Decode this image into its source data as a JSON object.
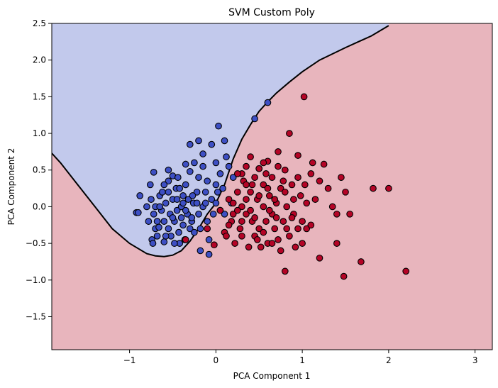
{
  "chart_data": {
    "type": "scatter",
    "title": "SVM Custom Poly",
    "xlabel": "PCA Component 1",
    "ylabel": "PCA Component 2",
    "xlim": [
      -1.9,
      3.2
    ],
    "ylim": [
      -1.95,
      2.5
    ],
    "xticks": [
      -1,
      0,
      1,
      2,
      3
    ],
    "xtick_labels": [
      "−1",
      "0",
      "1",
      "2",
      "3"
    ],
    "yticks": [
      -1.5,
      -1.0,
      -0.5,
      0.0,
      0.5,
      1.0,
      1.5,
      2.0,
      2.5
    ],
    "ytick_labels": [
      "−1.5",
      "−1.0",
      "−0.5",
      "0.0",
      "0.5",
      "1.0",
      "1.5",
      "2.0",
      "2.5"
    ],
    "grid": false,
    "legend": "none",
    "colors": {
      "region_class0": "#c2c9ec",
      "region_class1": "#e8b5bd",
      "class0": "#3d4fc4",
      "class1": "#b40426",
      "boundary": "#000000"
    },
    "decision_boundary": {
      "x": [
        -1.9,
        -1.8,
        -1.6,
        -1.4,
        -1.2,
        -1.0,
        -0.8,
        -0.7,
        -0.6,
        -0.5,
        -0.4,
        -0.3,
        -0.2,
        -0.1,
        0.0,
        0.1,
        0.2,
        0.3,
        0.4,
        0.5,
        0.6,
        0.7,
        0.85,
        1.0,
        1.2,
        1.5,
        1.8,
        2.0
      ],
      "y": [
        0.73,
        0.6,
        0.3,
        0.0,
        -0.3,
        -0.5,
        -0.64,
        -0.67,
        -0.68,
        -0.66,
        -0.6,
        -0.47,
        -0.3,
        -0.1,
        0.05,
        0.3,
        0.65,
        0.92,
        1.12,
        1.3,
        1.43,
        1.55,
        1.7,
        1.84,
        2.0,
        2.17,
        2.33,
        2.47
      ]
    },
    "series": [
      {
        "class": 0,
        "points": [
          [
            -0.92,
            -0.08
          ],
          [
            -0.9,
            -0.08
          ],
          [
            -0.88,
            0.15
          ],
          [
            -0.8,
            0.0
          ],
          [
            -0.78,
            -0.2
          ],
          [
            -0.76,
            0.3
          ],
          [
            -0.75,
            0.1
          ],
          [
            -0.74,
            -0.45
          ],
          [
            -0.73,
            -0.5
          ],
          [
            -0.72,
            0.47
          ],
          [
            -0.72,
            -0.1
          ],
          [
            -0.7,
            -0.3
          ],
          [
            -0.7,
            0.0
          ],
          [
            -0.68,
            -0.4
          ],
          [
            -0.66,
            -0.28
          ],
          [
            -0.65,
            0.15
          ],
          [
            -0.63,
            -0.05
          ],
          [
            -0.62,
            0.2
          ],
          [
            -0.6,
            -0.2
          ],
          [
            -0.6,
            -0.48
          ],
          [
            -0.58,
            0.05
          ],
          [
            -0.55,
            -0.3
          ],
          [
            -0.55,
            0.35
          ],
          [
            -0.53,
            -0.1
          ],
          [
            -0.52,
            -0.4
          ],
          [
            -0.5,
            0.1
          ],
          [
            -0.5,
            0.42
          ],
          [
            -0.48,
            -0.2
          ],
          [
            -0.46,
            0.25
          ],
          [
            -0.45,
            -0.05
          ],
          [
            -0.44,
            0.4
          ],
          [
            -0.43,
            -0.35
          ],
          [
            -0.42,
            -0.5
          ],
          [
            -0.4,
            0.0
          ],
          [
            -0.38,
            0.15
          ],
          [
            -0.38,
            -0.25
          ],
          [
            -0.36,
            -0.45
          ],
          [
            -0.35,
            0.3
          ],
          [
            -0.33,
            -0.1
          ],
          [
            -0.32,
            0.1
          ],
          [
            -0.3,
            -0.3
          ],
          [
            -0.3,
            0.48
          ],
          [
            -0.28,
            -0.2
          ],
          [
            -0.26,
            0.05
          ],
          [
            -0.25,
            -0.35
          ],
          [
            -0.22,
            0.2
          ],
          [
            -0.2,
            -0.1
          ],
          [
            -0.2,
            0.4
          ],
          [
            -0.18,
            -0.3
          ],
          [
            -0.15,
            0.0
          ],
          [
            -0.15,
            0.55
          ],
          [
            -0.12,
            0.2
          ],
          [
            -0.1,
            0.35
          ],
          [
            -0.1,
            -0.2
          ],
          [
            -0.08,
            -0.45
          ],
          [
            -0.05,
            0.1
          ],
          [
            -0.05,
            0.85
          ],
          [
            -0.03,
            -0.1
          ],
          [
            0.0,
            0.3
          ],
          [
            0.0,
            0.05
          ],
          [
            0.02,
            0.2
          ],
          [
            0.03,
            1.1
          ],
          [
            0.05,
            0.45
          ],
          [
            0.08,
            0.25
          ],
          [
            0.1,
            0.9
          ],
          [
            0.12,
            0.68
          ],
          [
            0.15,
            0.55
          ],
          [
            0.2,
            0.4
          ],
          [
            0.45,
            1.2
          ],
          [
            0.6,
            1.42
          ],
          [
            -0.3,
            0.85
          ],
          [
            -0.2,
            0.9
          ],
          [
            -0.15,
            0.72
          ],
          [
            -0.35,
            0.58
          ],
          [
            -0.25,
            0.6
          ],
          [
            -0.55,
            0.5
          ],
          [
            -0.6,
            0.3
          ],
          [
            -0.48,
            -0.5
          ],
          [
            -0.68,
            -0.2
          ],
          [
            -0.58,
            -0.4
          ],
          [
            -0.18,
            -0.6
          ],
          [
            -0.08,
            -0.65
          ],
          [
            0.18,
            0.05
          ],
          [
            0.1,
            -0.1
          ],
          [
            0.05,
            -0.05
          ],
          [
            -0.35,
            -0.05
          ],
          [
            -0.45,
            0.1
          ],
          [
            -0.27,
            0.15
          ],
          [
            -0.42,
            0.25
          ],
          [
            -0.65,
            0.0
          ],
          [
            -0.5,
            -0.15
          ],
          [
            -0.4,
            -0.15
          ],
          [
            -0.28,
            -0.15
          ],
          [
            -0.22,
            0.05
          ],
          [
            -0.12,
            0.05
          ],
          [
            -0.38,
            0.05
          ],
          [
            -0.55,
            0.2
          ],
          [
            0.5,
            0.52
          ],
          [
            0.0,
            0.6
          ]
        ],
        "_n": 0
      },
      {
        "class": 1,
        "points": [
          [
            -0.35,
            -0.45
          ],
          [
            -0.1,
            -0.3
          ],
          [
            -0.02,
            -0.52
          ],
          [
            0.05,
            -0.05
          ],
          [
            0.1,
            -0.35
          ],
          [
            0.12,
            -0.4
          ],
          [
            0.15,
            0.1
          ],
          [
            0.18,
            -0.2
          ],
          [
            0.2,
            0.05
          ],
          [
            0.22,
            -0.5
          ],
          [
            0.25,
            0.2
          ],
          [
            0.28,
            -0.3
          ],
          [
            0.3,
            -0.4
          ],
          [
            0.3,
            0.0
          ],
          [
            0.32,
            0.35
          ],
          [
            0.35,
            -0.1
          ],
          [
            0.35,
            0.55
          ],
          [
            0.38,
            -0.55
          ],
          [
            0.4,
            0.2
          ],
          [
            0.4,
            0.68
          ],
          [
            0.42,
            -0.2
          ],
          [
            0.45,
            -0.4
          ],
          [
            0.45,
            0.4
          ],
          [
            0.48,
            0.1
          ],
          [
            0.5,
            -0.3
          ],
          [
            0.5,
            0.52
          ],
          [
            0.52,
            -0.55
          ],
          [
            0.55,
            0.0
          ],
          [
            0.55,
            0.3
          ],
          [
            0.58,
            -0.2
          ],
          [
            0.6,
            -0.5
          ],
          [
            0.6,
            0.62
          ],
          [
            0.62,
            0.15
          ],
          [
            0.65,
            -0.1
          ],
          [
            0.65,
            0.4
          ],
          [
            0.68,
            -0.3
          ],
          [
            0.7,
            0.05
          ],
          [
            0.72,
            -0.45
          ],
          [
            0.72,
            0.75
          ],
          [
            0.75,
            0.25
          ],
          [
            0.75,
            -0.6
          ],
          [
            0.78,
            -0.2
          ],
          [
            0.8,
            0.5
          ],
          [
            0.8,
            -0.88
          ],
          [
            0.82,
            0.0
          ],
          [
            0.85,
            -0.4
          ],
          [
            0.85,
            1.0
          ],
          [
            0.88,
            0.3
          ],
          [
            0.9,
            -0.1
          ],
          [
            0.92,
            -0.55
          ],
          [
            0.95,
            0.7
          ],
          [
            0.98,
            0.15
          ],
          [
            1.0,
            -0.2
          ],
          [
            1.02,
            1.5
          ],
          [
            1.03,
            0.3
          ],
          [
            1.05,
            -0.3
          ],
          [
            1.1,
            0.45
          ],
          [
            1.15,
            0.1
          ],
          [
            1.2,
            -0.7
          ],
          [
            1.25,
            0.58
          ],
          [
            1.3,
            0.25
          ],
          [
            1.35,
            0.0
          ],
          [
            1.4,
            -0.5
          ],
          [
            1.45,
            0.4
          ],
          [
            1.48,
            -0.95
          ],
          [
            1.5,
            0.2
          ],
          [
            1.55,
            -0.1
          ],
          [
            1.68,
            -0.75
          ],
          [
            1.82,
            0.25
          ],
          [
            2.0,
            0.25
          ],
          [
            2.2,
            -0.88
          ],
          [
            0.2,
            -0.1
          ],
          [
            0.25,
            -0.05
          ],
          [
            0.3,
            0.45
          ],
          [
            0.45,
            -0.15
          ],
          [
            0.55,
            -0.35
          ],
          [
            0.68,
            0.1
          ],
          [
            0.72,
            0.55
          ],
          [
            0.82,
            -0.3
          ],
          [
            0.9,
            0.1
          ],
          [
            1.05,
            0.05
          ],
          [
            1.2,
            0.35
          ],
          [
            1.4,
            -0.1
          ],
          [
            0.4,
            -0.05
          ],
          [
            0.5,
            0.15
          ],
          [
            0.62,
            -0.05
          ],
          [
            0.78,
            0.35
          ],
          [
            0.95,
            -0.3
          ],
          [
            0.15,
            -0.25
          ],
          [
            0.35,
            0.1
          ],
          [
            0.6,
            0.25
          ],
          [
            0.88,
            -0.15
          ],
          [
            1.1,
            -0.25
          ],
          [
            0.25,
            0.45
          ],
          [
            0.42,
            0.3
          ],
          [
            0.58,
            0.45
          ],
          [
            0.7,
            -0.15
          ],
          [
            0.3,
            -0.2
          ],
          [
            0.48,
            -0.45
          ],
          [
            0.65,
            -0.5
          ],
          [
            0.8,
            0.2
          ],
          [
            0.95,
            0.4
          ],
          [
            1.0,
            -0.5
          ],
          [
            1.12,
            0.6
          ],
          [
            0.35,
            0.3
          ],
          [
            0.55,
            0.6
          ]
        ],
        "_n": 0
      }
    ]
  }
}
